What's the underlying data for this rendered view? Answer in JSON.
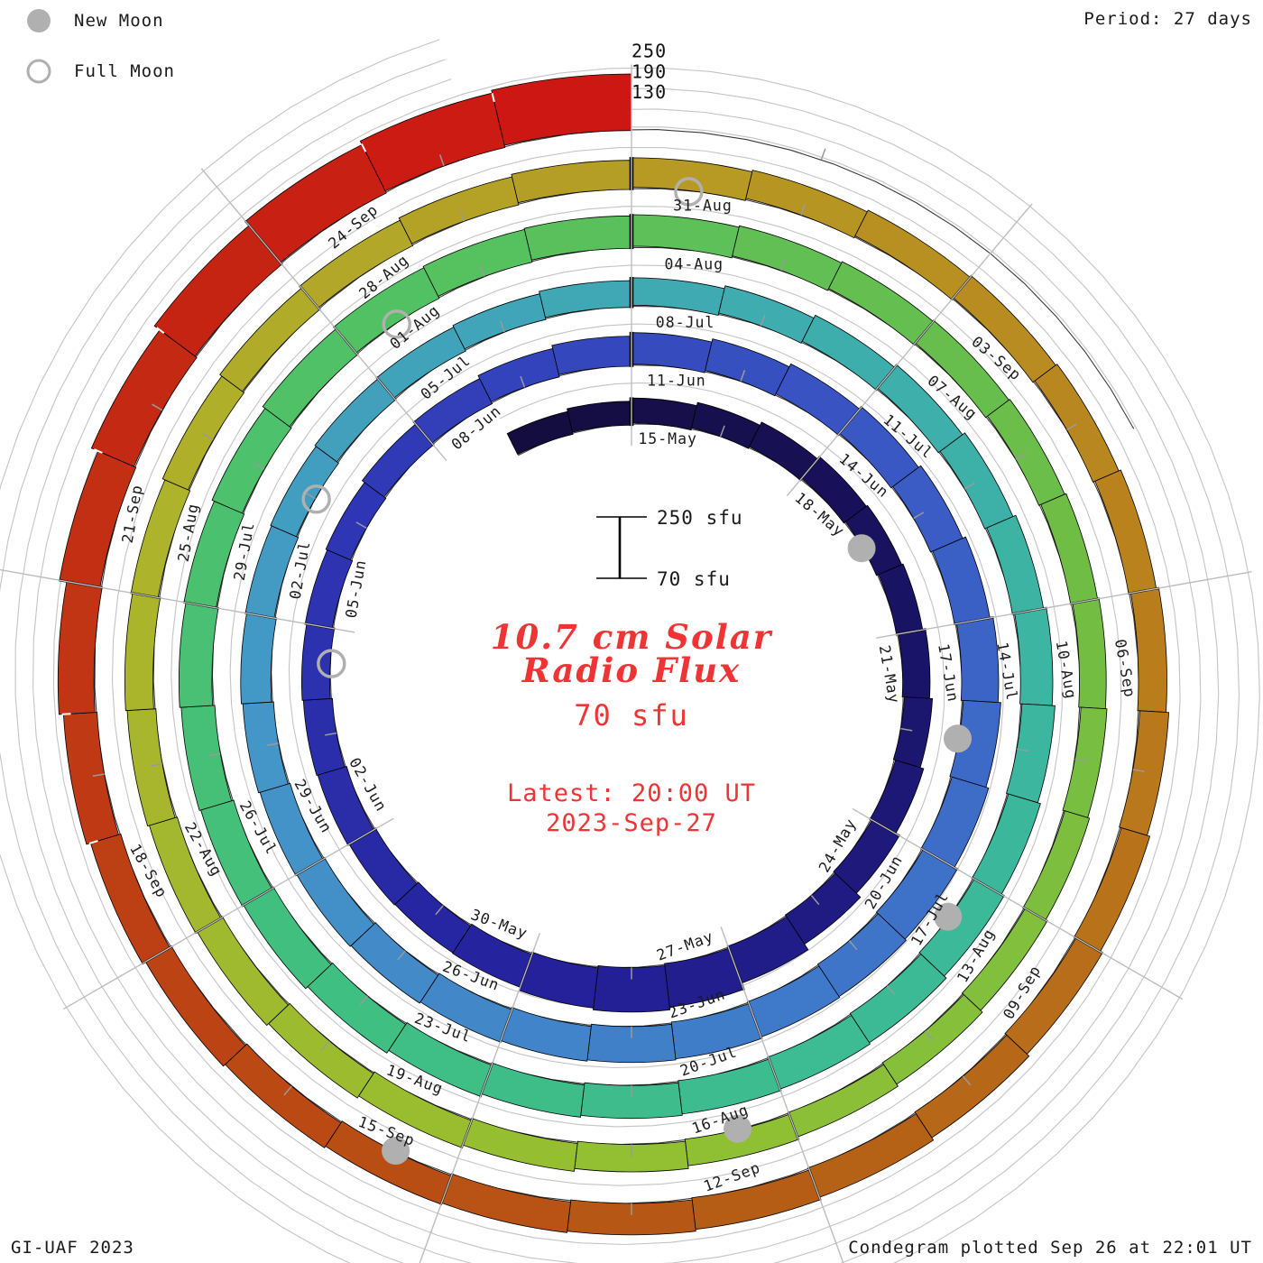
{
  "legend": {
    "new_moon_label": "New Moon",
    "full_moon_label": "Full Moon"
  },
  "header": {
    "period_label": "Period: 27 days"
  },
  "footer": {
    "credit": "GI-UAF 2023",
    "plotted": "Condegram plotted Sep 26 at 22:01 UT"
  },
  "center": {
    "title_line1": "10.7 cm Solar",
    "title_line2": "Radio Flux",
    "current_value": "70 sfu",
    "latest_line1": "Latest: 20:00 UT",
    "latest_line2": "2023-Sep-27",
    "scale_top": "250 sfu",
    "scale_bottom": "70 sfu"
  },
  "radial_axis_labels": [
    "250",
    "190",
    "130"
  ],
  "chart_data": {
    "type": "bar",
    "variant": "condegram: polar spiral of daily flux, clockwise, one turn = 27 days",
    "title": "10.7 cm Solar Radio Flux",
    "period_days": 27,
    "start_date": "2023-05-13",
    "end_date": "2023-09-26",
    "flux_base_sfu": 70,
    "flux_max_sfu": 250,
    "gridlines_sfu": [
      130,
      190,
      250
    ],
    "spokes_per_turn": 9,
    "days_per_spoke_label": 3,
    "spoke_date_labels": [
      "15-May",
      "18-May",
      "21-May",
      "24-May",
      "27-May",
      "30-May",
      "02-Jun",
      "05-Jun",
      "08-Jun",
      "11-Jun",
      "14-Jun",
      "17-Jun",
      "20-Jun",
      "23-Jun",
      "26-Jun",
      "29-Jun",
      "02-Jul",
      "05-Jul",
      "08-Jul",
      "11-Jul",
      "14-Jul",
      "17-Jul",
      "20-Jul",
      "23-Jul",
      "26-Jul",
      "29-Jul",
      "01-Aug",
      "04-Aug",
      "07-Aug",
      "10-Aug",
      "13-Aug",
      "16-Aug",
      "19-Aug",
      "22-Aug",
      "25-Aug",
      "28-Aug",
      "31-Aug",
      "03-Sep",
      "06-Sep",
      "09-Sep",
      "12-Sep",
      "15-Sep",
      "18-Sep",
      "21-Sep",
      "24-Sep"
    ],
    "daily_flux_estimate_sfu": [
      138,
      140,
      143,
      146,
      150,
      152,
      150,
      148,
      150,
      152,
      156,
      162,
      172,
      185,
      198,
      200,
      188,
      172,
      164,
      160,
      158,
      155,
      152,
      150,
      148,
      150,
      152,
      155,
      158,
      162,
      165,
      168,
      170,
      172,
      175,
      178,
      180,
      182,
      185,
      183,
      180,
      178,
      175,
      172,
      170,
      168,
      165,
      162,
      160,
      158,
      155,
      152,
      150,
      148,
      147,
      148,
      150,
      152,
      155,
      158,
      160,
      162,
      164,
      166,
      168,
      170,
      172,
      170,
      168,
      166,
      165,
      167,
      170,
      172,
      170,
      168,
      166,
      165,
      166,
      168,
      170,
      168,
      165,
      162,
      160,
      158,
      155,
      152,
      150,
      148,
      146,
      145,
      144,
      145,
      146,
      148,
      150,
      152,
      154,
      155,
      156,
      155,
      154,
      152,
      150,
      151,
      152,
      153,
      154,
      155,
      156,
      155,
      154,
      153,
      152,
      152,
      153,
      155,
      157,
      158,
      160,
      162,
      163,
      162,
      160,
      158,
      157,
      158,
      162,
      168,
      175,
      190,
      205,
      218,
      228,
      233,
      235
    ],
    "new_moons": [
      {
        "date": "2023-05-19",
        "day_index": 6
      },
      {
        "date": "2023-06-18",
        "day_index": 36
      },
      {
        "date": "2023-07-17",
        "day_index": 65
      },
      {
        "date": "2023-08-16",
        "day_index": 95
      },
      {
        "date": "2023-09-15",
        "day_index": 125
      }
    ],
    "full_moons": [
      {
        "date": "2023-06-04",
        "day_index": 22
      },
      {
        "date": "2023-07-03",
        "day_index": 51
      },
      {
        "date": "2023-08-01",
        "day_index": 80
      },
      {
        "date": "2023-08-31",
        "day_index": 110
      }
    ],
    "colors": {
      "colormap_stops": [
        [
          0,
          "#140d40"
        ],
        [
          8,
          "#1a1468"
        ],
        [
          16,
          "#24219b"
        ],
        [
          24,
          "#2f36b5"
        ],
        [
          32,
          "#3a58c4"
        ],
        [
          40,
          "#3f79c9"
        ],
        [
          48,
          "#4496c8"
        ],
        [
          56,
          "#3faab2"
        ],
        [
          64,
          "#3bb89c"
        ],
        [
          72,
          "#3fbf82"
        ],
        [
          80,
          "#52c163"
        ],
        [
          88,
          "#6fbd45"
        ],
        [
          96,
          "#93c032"
        ],
        [
          104,
          "#adb32b"
        ],
        [
          110,
          "#b69a24"
        ],
        [
          116,
          "#b97d1c"
        ],
        [
          122,
          "#b55c15"
        ],
        [
          128,
          "#bd3f14"
        ],
        [
          133,
          "#c62413"
        ],
        [
          136,
          "#cd1712"
        ]
      ],
      "gridline": "#c4c4c4",
      "spoke": "#bdbdbd",
      "base_line": "#3a3a3a",
      "bar_outline": "#000000",
      "moon": "#b0b0b0",
      "label_text": "#1b1b1b",
      "title_red": "#ee3434"
    },
    "legend_position": "top-left",
    "grid": true
  }
}
